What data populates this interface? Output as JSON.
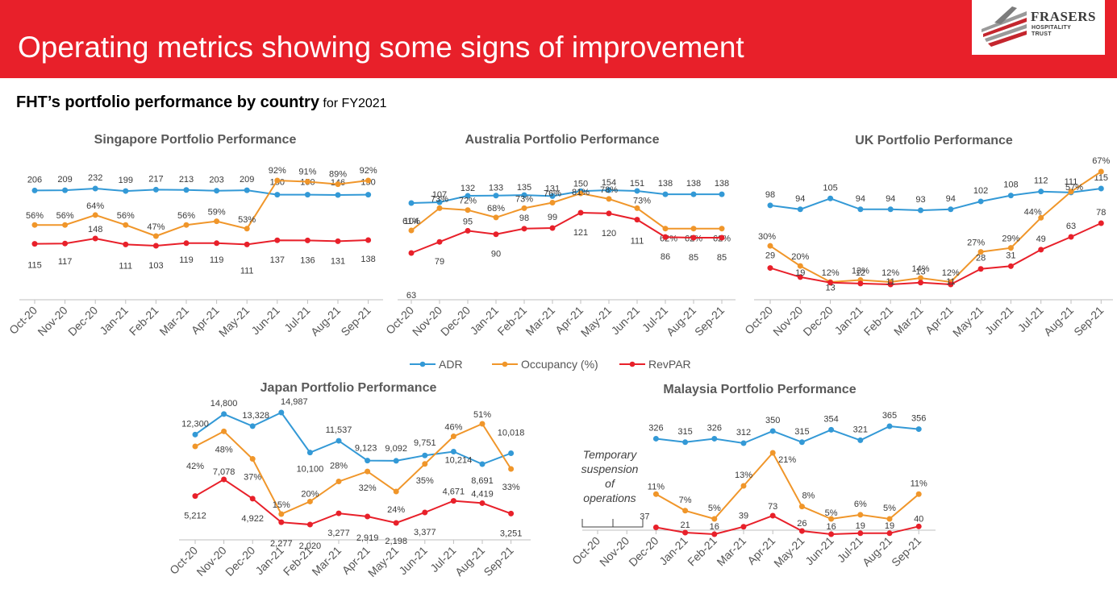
{
  "header": {
    "title": "Operating metrics showing some signs of improvement",
    "logo": {
      "name": "FRASERS",
      "sub1": "HOSPITALITY",
      "sub2": "TRUST"
    }
  },
  "section": {
    "title": "FHT’s portfolio performance by country",
    "subtitle": "for FY2021"
  },
  "colors": {
    "banner": "#e8202a",
    "adr": "#3399d6",
    "occupancy": "#f0962a",
    "revpar": "#e8202a"
  },
  "legend": [
    "ADR",
    "Occupancy (%)",
    "RevPAR"
  ],
  "chart_data": [
    {
      "type": "line",
      "title": "Singapore Portfolio Performance",
      "categories": [
        "Oct-20",
        "Nov-20",
        "Dec-20",
        "Jan-21",
        "Feb-21",
        "Mar-21",
        "Apr-21",
        "May-21",
        "Jun-21",
        "Jul-21",
        "Aug-21",
        "Sep-21"
      ],
      "series": [
        {
          "name": "ADR",
          "values": [
            206,
            209,
            232,
            199,
            217,
            213,
            203,
            209,
            150,
            150,
            146,
            150
          ],
          "labels": [
            "206",
            "209",
            "232",
            "199",
            "217",
            "213",
            "203",
            "209",
            "150",
            "150",
            "146",
            "150"
          ]
        },
        {
          "name": "Occupancy (%)",
          "values": [
            56,
            56,
            64,
            56,
            47,
            56,
            59,
            53,
            92,
            91,
            89,
            92
          ],
          "labels": [
            "56%",
            "56%",
            "64%",
            "56%",
            "47%",
            "56%",
            "59%",
            "53%",
            "92%",
            "91%",
            "89%",
            "92%"
          ]
        },
        {
          "name": "RevPAR",
          "values": [
            115,
            117,
            148,
            111,
            103,
            119,
            119,
            111,
            137,
            136,
            131,
            138
          ],
          "labels": [
            "115",
            "117",
            "148",
            "111",
            "103",
            "119",
            "119",
            "111",
            "137",
            "136",
            "131",
            "138"
          ]
        }
      ]
    },
    {
      "type": "line",
      "title": "Australia Portfolio Performance",
      "categories": [
        "Oct-20",
        "Nov-20",
        "Dec-20",
        "Jan-21",
        "Feb-21",
        "Mar-21",
        "Apr-21",
        "May-21",
        "Jun-21",
        "Jul-21",
        "Aug-21",
        "Sep-21"
      ],
      "series": [
        {
          "name": "ADR",
          "values": [
            104,
            107,
            132,
            133,
            135,
            131,
            150,
            154,
            151,
            138,
            138,
            138
          ],
          "labels": [
            "104",
            "107",
            "132",
            "133",
            "135",
            "131",
            "150",
            "154",
            "151",
            "138",
            "138",
            "138"
          ]
        },
        {
          "name": "Occupancy (%)",
          "values": [
            61,
            73,
            72,
            68,
            73,
            76,
            81,
            78,
            73,
            62,
            62,
            62
          ],
          "labels": [
            "61%",
            "73%",
            "72%",
            "68%",
            "73%",
            "76%",
            "81%",
            "78%",
            "73%",
            "62%",
            "62%",
            "62%"
          ]
        },
        {
          "name": "RevPAR",
          "values": [
            63,
            79,
            95,
            90,
            98,
            99,
            121,
            120,
            111,
            86,
            85,
            85
          ],
          "labels": [
            "63",
            "79",
            "95",
            "90",
            "98",
            "99",
            "121",
            "120",
            "111",
            "86",
            "85",
            "85"
          ]
        }
      ]
    },
    {
      "type": "line",
      "title": "UK Portfolio Performance",
      "categories": [
        "Oct-20",
        "Nov-20",
        "Dec-20",
        "Jan-21",
        "Feb-21",
        "Mar-21",
        "Apr-21",
        "May-21",
        "Jun-21",
        "Jul-21",
        "Aug-21",
        "Sep-21"
      ],
      "series": [
        {
          "name": "ADR",
          "values": [
            98,
            94,
            105,
            94,
            94,
            93,
            94,
            102,
            108,
            112,
            111,
            115
          ],
          "labels": [
            "98",
            "94",
            "105",
            "94",
            "94",
            "93",
            "94",
            "102",
            "108",
            "112",
            "111",
            "115"
          ]
        },
        {
          "name": "Occupancy (%)",
          "values": [
            30,
            20,
            12,
            13,
            12,
            14,
            12,
            27,
            29,
            44,
            57,
            67
          ],
          "labels": [
            "30%",
            "20%",
            "12%",
            "13%",
            "12%",
            "14%",
            "12%",
            "27%",
            "29%",
            "44%",
            "57%",
            "67%"
          ]
        },
        {
          "name": "RevPAR",
          "values": [
            29,
            19,
            13,
            12,
            11,
            13,
            11,
            28,
            31,
            49,
            63,
            78
          ],
          "labels": [
            "29",
            "19",
            "13",
            "12",
            "11",
            "13",
            "11",
            "28",
            "31",
            "49",
            "63",
            "78"
          ]
        }
      ]
    },
    {
      "type": "line",
      "title": "Japan Portfolio Performance",
      "categories": [
        "Oct-20",
        "Nov-20",
        "Dec-20",
        "Jan-21",
        "Feb-21",
        "Mar-21",
        "Apr-21",
        "May-21",
        "Jun-21",
        "Jul-21",
        "Aug-21",
        "Sep-21"
      ],
      "series": [
        {
          "name": "ADR",
          "values": [
            12300,
            14800,
            13328,
            14987,
            10100,
            11537,
            9123,
            9092,
            9751,
            10214,
            8691,
            10018
          ],
          "labels": [
            "12,300",
            "14,800",
            "13,328",
            "14,987",
            "10,100",
            "11,537",
            "9,123",
            "9,092",
            "9,751",
            "10,214",
            "8,691",
            "10,018"
          ]
        },
        {
          "name": "Occupancy (%)",
          "values": [
            42,
            48,
            37,
            15,
            20,
            28,
            32,
            24,
            35,
            46,
            51,
            33
          ],
          "labels": [
            "42%",
            "48%",
            "37%",
            "15%",
            "20%",
            "28%",
            "32%",
            "24%",
            "35%",
            "46%",
            "51%",
            "33%"
          ]
        },
        {
          "name": "RevPAR",
          "values": [
            5212,
            7078,
            4922,
            2277,
            2020,
            3277,
            2919,
            2198,
            3377,
            4671,
            4419,
            3251
          ],
          "labels": [
            "5,212",
            "7,078",
            "4,922",
            "2,277",
            "2,020",
            "3,277",
            "2,919",
            "2,198",
            "3,377",
            "4,671",
            "4,419",
            "3,251"
          ]
        }
      ]
    },
    {
      "type": "line",
      "title": "Malaysia Portfolio Performance",
      "categories": [
        "Oct-20",
        "Nov-20",
        "Dec-20",
        "Jan-21",
        "Feb-21",
        "Mar-21",
        "Apr-21",
        "May-21",
        "Jun-21",
        "Jul-21",
        "Aug-21",
        "Sep-21"
      ],
      "annotation": [
        "Temporary",
        "suspension",
        "of",
        "operations"
      ],
      "series": [
        {
          "name": "ADR",
          "values": [
            null,
            null,
            326,
            315,
            326,
            312,
            350,
            315,
            354,
            321,
            365,
            356
          ],
          "labels": [
            null,
            null,
            "326",
            "315",
            "326",
            "312",
            "350",
            "315",
            "354",
            "321",
            "365",
            "356"
          ]
        },
        {
          "name": "Occupancy (%)",
          "values": [
            null,
            null,
            11,
            7,
            5,
            13,
            21,
            8,
            5,
            6,
            5,
            11
          ],
          "labels": [
            null,
            null,
            "11%",
            "7%",
            "5%",
            "13%",
            "21%",
            "8%",
            "5%",
            "6%",
            "5%",
            "11%"
          ]
        },
        {
          "name": "RevPAR",
          "values": [
            null,
            null,
            37,
            21,
            16,
            39,
            73,
            26,
            16,
            19,
            19,
            40
          ],
          "labels": [
            null,
            null,
            "37",
            "21",
            "16",
            "39",
            "73",
            "26",
            "16",
            "19",
            "19",
            "40"
          ]
        }
      ]
    }
  ]
}
